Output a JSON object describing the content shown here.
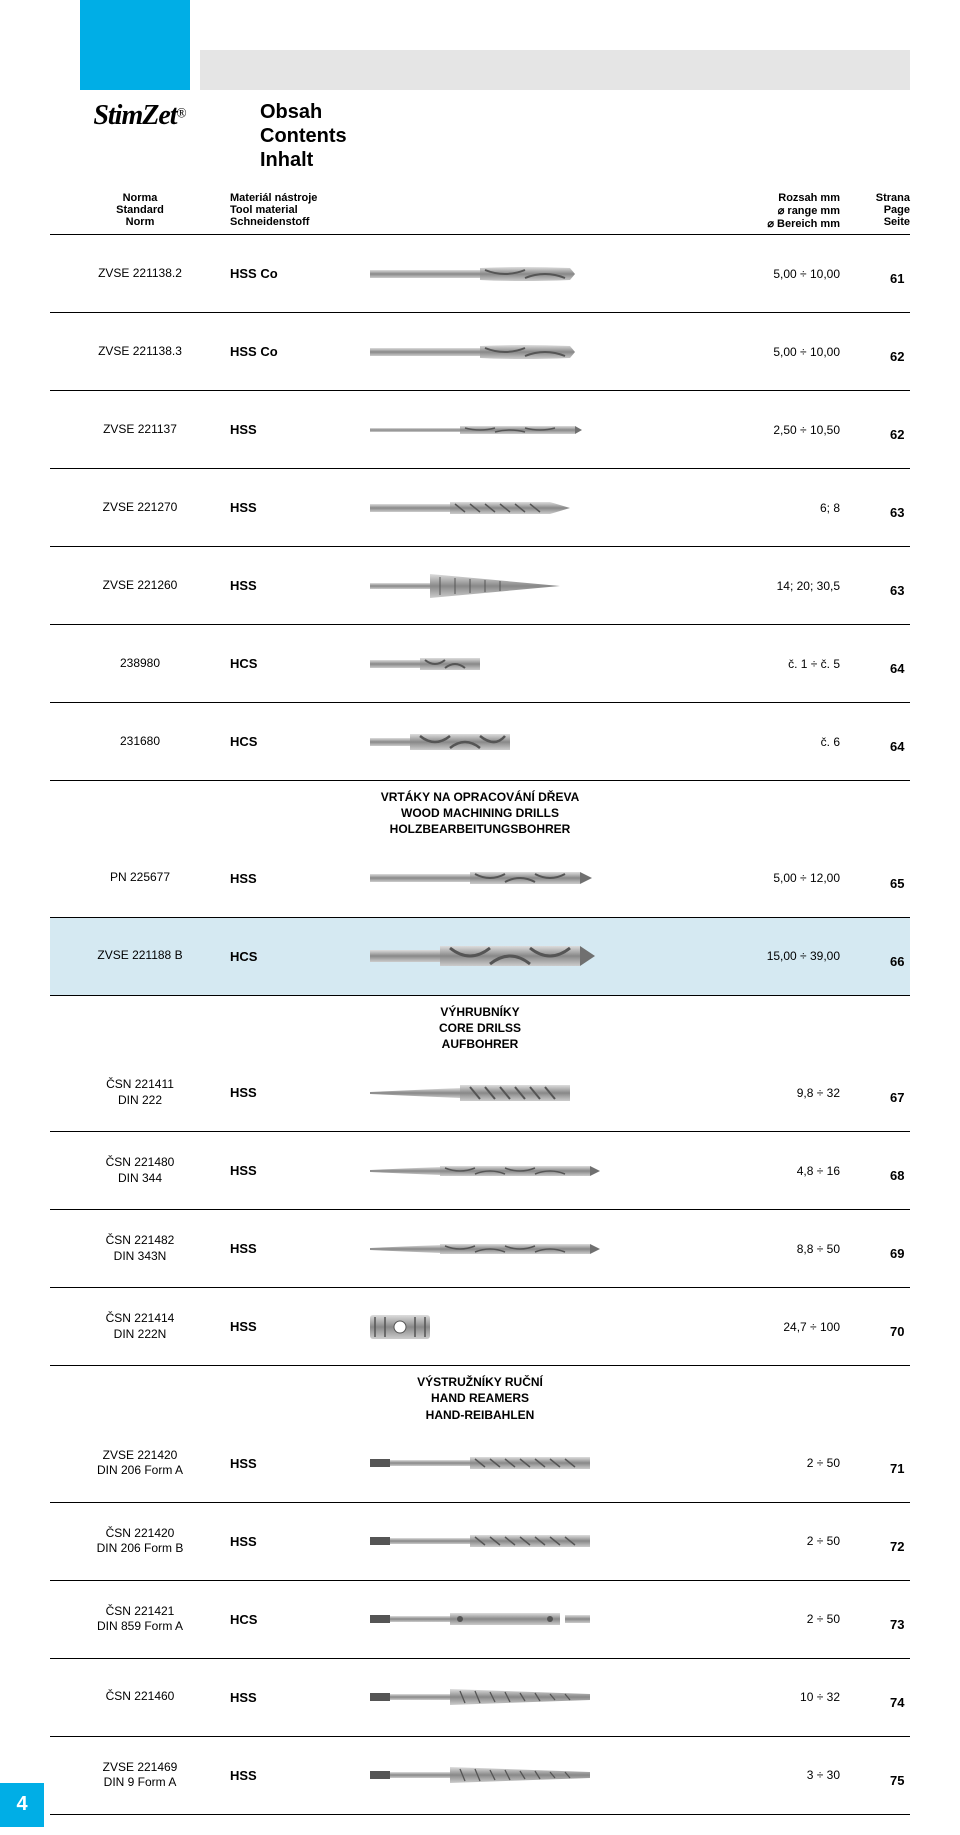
{
  "logo": "StimZet",
  "logo_r": "®",
  "title": {
    "l1": "Obsah",
    "l2": "Contents",
    "l3": "Inhalt"
  },
  "headers": {
    "norm": {
      "l1": "Norma",
      "l2": "Standard",
      "l3": "Norm"
    },
    "mat": {
      "l1": "Materiál nástroje",
      "l2": "Tool material",
      "l3": "Schneidenstoff"
    },
    "range": {
      "l1": "Rozsah mm",
      "l2": "⌀ range mm",
      "l3": "⌀ Bereich mm"
    },
    "page": {
      "l1": "Strana",
      "l2": "Page",
      "l3": "Seite"
    }
  },
  "sections": {
    "wood": {
      "l1": "VRTÁKY NA OPRACOVÁNÍ DŘEVA",
      "l2": "WOOD MACHINING DRILLS",
      "l3": "HOLZBEARBEITUNGSBOHRER"
    },
    "core": {
      "l1": "VÝHRUBNÍKY",
      "l2": "CORE DRILSS",
      "l3": "AUFBOHRER"
    },
    "reamer": {
      "l1": "VÝSTRUŽNÍKY RUČNÍ",
      "l2": "HAND REAMERS",
      "l3": "HAND-REIBAHLEN"
    }
  },
  "rows": [
    {
      "norm": "ZVSE 221138.2",
      "mat": "HSS Co",
      "range": "5,00 ÷ 10,00",
      "page": "61",
      "shape": "drill"
    },
    {
      "norm": "ZVSE 221138.3",
      "mat": "HSS Co",
      "range": "5,00 ÷ 10,00",
      "page": "62",
      "shape": "drill"
    },
    {
      "norm": "ZVSE 221137",
      "mat": "HSS",
      "range": "2,50 ÷ 10,50",
      "page": "62",
      "shape": "thin-drill"
    },
    {
      "norm": "ZVSE 221270",
      "mat": "HSS",
      "range": "6; 8",
      "page": "63",
      "shape": "step"
    },
    {
      "norm": "ZVSE 221260",
      "mat": "HSS",
      "range": "14; 20; 30,5",
      "page": "63",
      "shape": "cone"
    },
    {
      "norm": "238980",
      "mat": "HCS",
      "range": "č. 1 ÷ č. 5",
      "page": "64",
      "shape": "extractor-sm"
    },
    {
      "norm": "231680",
      "mat": "HCS",
      "range": "č. 6",
      "page": "64",
      "shape": "extractor"
    },
    {
      "section": "wood"
    },
    {
      "norm": "PN 225677",
      "mat": "HSS",
      "range": "5,00 ÷ 12,00",
      "page": "65",
      "shape": "wood-drill"
    },
    {
      "norm": "ZVSE 221188 B",
      "mat": "HCS",
      "range": "15,00 ÷ 39,00",
      "page": "66",
      "shape": "wood-thick",
      "hl": true
    },
    {
      "section": "core"
    },
    {
      "norm1": "ČSN 221411",
      "norm2": "DIN 222",
      "mat": "HSS",
      "range": "9,8 ÷ 32",
      "page": "67",
      "shape": "core-taper"
    },
    {
      "norm1": "ČSN 221480",
      "norm2": "DIN 344",
      "mat": "HSS",
      "range": "4,8 ÷ 16",
      "page": "68",
      "shape": "core-long"
    },
    {
      "norm1": "ČSN 221482",
      "norm2": "DIN 343N",
      "mat": "HSS",
      "range": "8,8 ÷ 50",
      "page": "69",
      "shape": "core-long"
    },
    {
      "norm1": "ČSN 221414",
      "norm2": "DIN 222N",
      "mat": "HSS",
      "range": "24,7 ÷ 100",
      "page": "70",
      "shape": "shell"
    },
    {
      "section": "reamer"
    },
    {
      "norm1": "ZVSE 221420",
      "norm2": "DIN 206 Form A",
      "mat": "HSS",
      "range": "2 ÷ 50",
      "page": "71",
      "shape": "reamer"
    },
    {
      "norm1": "ČSN 221420",
      "norm2": "DIN 206 Form B",
      "mat": "HSS",
      "range": "2 ÷ 50",
      "page": "72",
      "shape": "reamer"
    },
    {
      "norm1": "ČSN 221421",
      "norm2": "DIN 859 Form A",
      "mat": "HCS",
      "range": "2 ÷ 50",
      "page": "73",
      "shape": "reamer-adj"
    },
    {
      "norm": "ČSN 221460",
      "mat": "HSS",
      "range": "10 ÷ 32",
      "page": "74",
      "shape": "reamer-taper"
    },
    {
      "norm1": "ZVSE 221469",
      "norm2": "DIN 9 Form A",
      "mat": "HSS",
      "range": "3 ÷ 30",
      "page": "75",
      "shape": "reamer-taper"
    }
  ],
  "page_number": "4",
  "colors": {
    "accent": "#00aee6",
    "highlight": "#d5e9f2",
    "metal": "#b0b0b0",
    "metal_dark": "#707070"
  }
}
